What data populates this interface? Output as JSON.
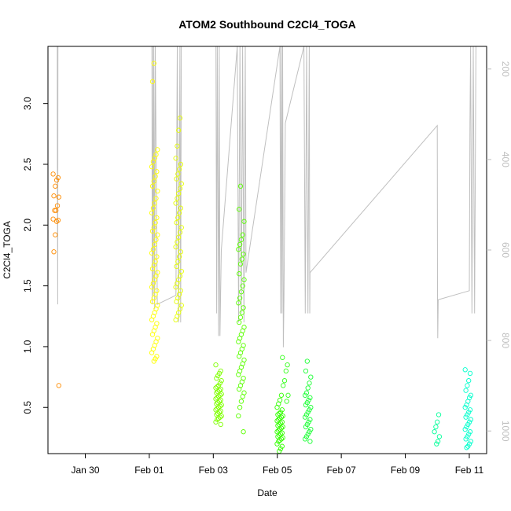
{
  "chart_data": {
    "type": "scatter",
    "title": "ATOM2 Southbound C2Cl4_TOGA",
    "xlabel": "Date",
    "ylabel": "C2Cl4_TOGA",
    "xlim": [
      "2017-01-28T20:00",
      "2017-02-11T13:00"
    ],
    "ylim": [
      0.12,
      3.47
    ],
    "x_ticks": [
      {
        "date": "2017-01-30",
        "label": "Jan 30"
      },
      {
        "date": "2017-02-01",
        "label": "Feb 01"
      },
      {
        "date": "2017-02-03",
        "label": "Feb 03"
      },
      {
        "date": "2017-02-05",
        "label": "Feb 05"
      },
      {
        "date": "2017-02-07",
        "label": "Feb 07"
      },
      {
        "date": "2017-02-09",
        "label": "Feb 09"
      },
      {
        "date": "2017-02-11",
        "label": "Feb 11"
      }
    ],
    "y_ticks": [
      "0.5",
      "1.0",
      "1.5",
      "2.0",
      "2.5",
      "3.0"
    ],
    "right_axis": {
      "label": "",
      "reversed": true,
      "range": [
        150,
        1050
      ],
      "ticks": [
        "200",
        "400",
        "600",
        "800",
        "1000"
      ],
      "color": "#bfbfbf"
    },
    "secondary_line": {
      "name": "",
      "color": "#bfbfbf",
      "points": [
        [
          "2017-01-29T03:00",
          150
        ],
        [
          "2017-01-29T03:00",
          300
        ],
        [
          "2017-01-29T03:20",
          720
        ],
        [
          "2017-01-29T03:30",
          150
        ],
        [
          "2017-02-01T02:00",
          150
        ],
        [
          "2017-02-01T02:10",
          720
        ],
        [
          "2017-02-01T02:20",
          150
        ],
        [
          "2017-02-01T03:00",
          700
        ],
        [
          "2017-02-01T03:20",
          150
        ],
        [
          "2017-02-01T04:00",
          730
        ],
        [
          "2017-02-01T04:30",
          150
        ],
        [
          "2017-02-01T06:00",
          720
        ],
        [
          "2017-02-01T20:00",
          700
        ],
        [
          "2017-02-01T21:00",
          150
        ],
        [
          "2017-02-01T22:00",
          760
        ],
        [
          "2017-02-01T23:00",
          150
        ],
        [
          "2017-02-01T23:30",
          760
        ],
        [
          "2017-02-02T00:00",
          150
        ],
        [
          "2017-02-03T02:00",
          150
        ],
        [
          "2017-02-03T02:30",
          740
        ],
        [
          "2017-02-03T03:00",
          150
        ],
        [
          "2017-02-03T04:00",
          790
        ],
        [
          "2017-02-03T04:30",
          150
        ],
        [
          "2017-02-03T05:00",
          790
        ],
        [
          "2017-02-03T06:00",
          600
        ],
        [
          "2017-02-03T18:00",
          150
        ],
        [
          "2017-02-03T19:00",
          760
        ],
        [
          "2017-02-03T20:00",
          150
        ],
        [
          "2017-02-03T21:00",
          740
        ],
        [
          "2017-02-03T22:00",
          150
        ],
        [
          "2017-02-03T23:00",
          760
        ],
        [
          "2017-02-04T00:00",
          150
        ],
        [
          "2017-02-04T00:30",
          650
        ],
        [
          "2017-02-05T02:00",
          150
        ],
        [
          "2017-02-05T02:30",
          740
        ],
        [
          "2017-02-05T03:00",
          150
        ],
        [
          "2017-02-05T03:30",
          740
        ],
        [
          "2017-02-05T04:00",
          150
        ],
        [
          "2017-02-05T04:30",
          815
        ],
        [
          "2017-02-05T05:00",
          710
        ],
        [
          "2017-02-05T06:00",
          320
        ],
        [
          "2017-02-05T20:00",
          150
        ],
        [
          "2017-02-05T21:00",
          740
        ],
        [
          "2017-02-05T22:00",
          150
        ],
        [
          "2017-02-05T23:00",
          740
        ],
        [
          "2017-02-06T00:00",
          150
        ],
        [
          "2017-02-06T00:20",
          740
        ],
        [
          "2017-02-06T00:30",
          650
        ],
        [
          "2017-02-10T00:00",
          325
        ],
        [
          "2017-02-10T00:10",
          700
        ],
        [
          "2017-02-10T00:20",
          795
        ],
        [
          "2017-02-10T00:40",
          710
        ],
        [
          "2017-02-11T00:00",
          690
        ],
        [
          "2017-02-11T00:30",
          320
        ],
        [
          "2017-02-11T01:00",
          150
        ],
        [
          "2017-02-11T02:00",
          740
        ],
        [
          "2017-02-11T03:00",
          150
        ],
        [
          "2017-02-11T04:00",
          740
        ],
        [
          "2017-02-11T05:00",
          150
        ]
      ]
    },
    "clusters": [
      {
        "center": "2017-01-29T02:00",
        "color": "#ff8c00",
        "yvalues": [
          2.42,
          2.39,
          2.37,
          2.32,
          2.24,
          2.23,
          2.16,
          2.12,
          2.12,
          2.05,
          2.04,
          2.03,
          1.92,
          1.78,
          0.68
        ]
      },
      {
        "center": "2017-02-01T04:00",
        "color": "#ffff00",
        "yvalues": [
          3.33,
          3.18,
          2.62,
          2.58,
          2.55,
          2.52,
          2.48,
          2.44,
          2.4,
          2.36,
          2.32,
          2.28,
          2.22,
          2.18,
          2.14,
          2.1,
          2.06,
          2.02,
          1.98,
          1.95,
          1.92,
          1.88,
          1.84,
          1.8,
          1.77,
          1.74,
          1.7,
          1.67,
          1.64,
          1.61,
          1.58,
          1.55,
          1.52,
          1.49,
          1.46,
          1.43,
          1.4,
          1.37,
          1.34,
          1.31,
          1.28,
          1.25,
          1.22,
          1.19,
          1.16,
          1.13,
          1.1,
          1.07,
          1.04,
          1.01,
          0.98,
          0.95,
          0.92,
          0.9,
          0.88
        ]
      },
      {
        "center": "2017-02-01T22:00",
        "color": "#e6ff00",
        "yvalues": [
          2.88,
          2.78,
          2.65,
          2.55,
          2.5,
          2.46,
          2.42,
          2.38,
          2.34,
          2.3,
          2.26,
          2.22,
          2.18,
          2.14,
          2.1,
          2.06,
          2.02,
          1.98,
          1.94,
          1.9,
          1.86,
          1.82,
          1.78,
          1.74,
          1.7,
          1.66,
          1.62,
          1.58,
          1.55,
          1.52,
          1.49,
          1.46,
          1.43,
          1.4,
          1.37,
          1.34,
          1.31,
          1.28,
          1.25,
          1.22
        ]
      },
      {
        "center": "2017-02-03T04:00",
        "color": "#7fff00",
        "yvalues": [
          0.85,
          0.8,
          0.78,
          0.76,
          0.74,
          0.72,
          0.7,
          0.68,
          0.67,
          0.66,
          0.65,
          0.64,
          0.63,
          0.62,
          0.61,
          0.6,
          0.59,
          0.58,
          0.57,
          0.56,
          0.55,
          0.54,
          0.53,
          0.52,
          0.51,
          0.5,
          0.49,
          0.48,
          0.47,
          0.46,
          0.45,
          0.44,
          0.43,
          0.42,
          0.41,
          0.4,
          0.38,
          0.36
        ]
      },
      {
        "center": "2017-02-03T21:00",
        "color": "#5aff00",
        "yvalues": [
          2.32,
          2.13,
          2.03,
          1.92,
          1.88,
          1.84,
          1.8,
          1.76,
          1.72,
          1.68,
          1.6,
          1.55,
          1.5,
          1.45,
          1.4,
          1.36,
          1.32,
          1.28,
          1.24,
          1.2,
          1.16,
          1.13,
          1.1,
          1.07,
          1.04,
          1.01,
          0.98,
          0.95,
          0.92,
          0.89,
          0.86,
          0.83,
          0.8,
          0.77,
          0.74,
          0.71,
          0.68,
          0.65,
          0.62,
          0.59,
          0.55,
          0.5,
          0.43,
          0.3
        ]
      },
      {
        "center": "2017-02-05T02:00",
        "color": "#33ff00",
        "yvalues": [
          0.6,
          0.56,
          0.53,
          0.5,
          0.48,
          0.46,
          0.45,
          0.44,
          0.43,
          0.42,
          0.41,
          0.4,
          0.39,
          0.38,
          0.37,
          0.36,
          0.35,
          0.34,
          0.33,
          0.32,
          0.31,
          0.3,
          0.29,
          0.28,
          0.27,
          0.26,
          0.25,
          0.24,
          0.23,
          0.22,
          0.2,
          0.18,
          0.16,
          0.14
        ]
      },
      {
        "center": "2017-02-05T06:00",
        "color": "#33ff1a",
        "yvalues": [
          0.91,
          0.85,
          0.8,
          0.72,
          0.68,
          0.6,
          0.55
        ]
      },
      {
        "center": "2017-02-05T23:00",
        "color": "#1aff33",
        "yvalues": [
          0.88,
          0.8,
          0.75,
          0.7,
          0.66,
          0.62,
          0.6,
          0.58,
          0.56,
          0.54,
          0.52,
          0.5,
          0.48,
          0.46,
          0.44,
          0.42,
          0.4,
          0.38,
          0.36,
          0.34,
          0.32,
          0.3,
          0.28,
          0.26,
          0.24,
          0.22
        ]
      },
      {
        "center": "2017-02-10T00:00",
        "color": "#00ff99",
        "yvalues": [
          0.44,
          0.38,
          0.34,
          0.3,
          0.26,
          0.22,
          0.2
        ]
      },
      {
        "center": "2017-02-10T23:00",
        "color": "#00ffcc",
        "yvalues": [
          0.81,
          0.78,
          0.72,
          0.68,
          0.64,
          0.6,
          0.58,
          0.55,
          0.52,
          0.5,
          0.48,
          0.46,
          0.44,
          0.42,
          0.4,
          0.38,
          0.36,
          0.34,
          0.32,
          0.3,
          0.28,
          0.26,
          0.24,
          0.22,
          0.2,
          0.18,
          0.17
        ]
      }
    ]
  }
}
